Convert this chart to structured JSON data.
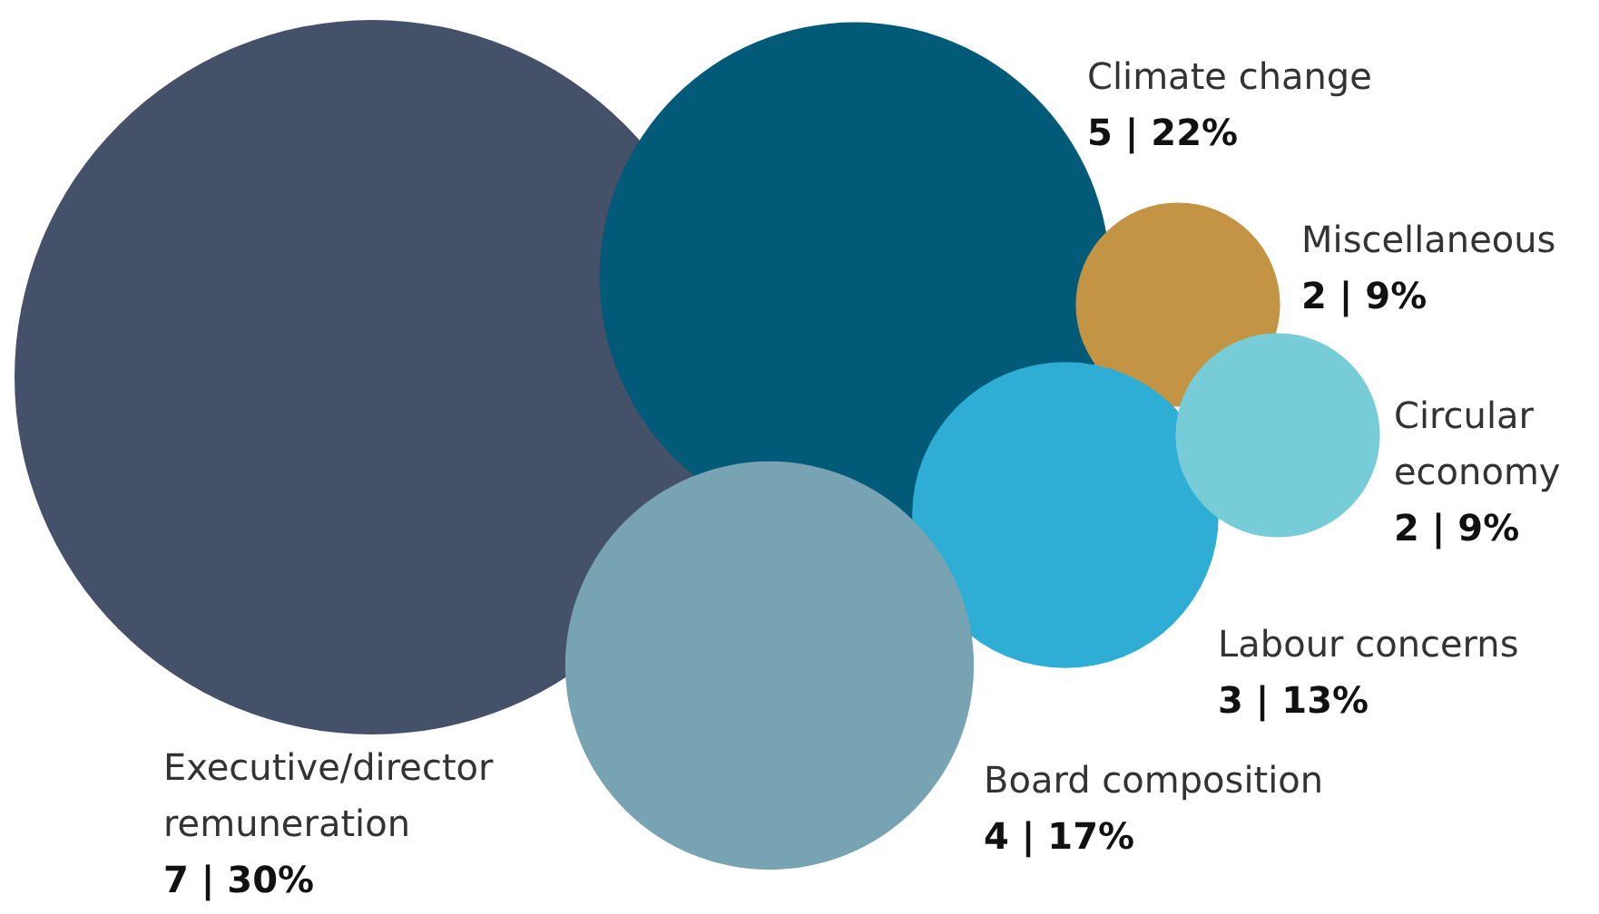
{
  "chart_data": {
    "type": "other",
    "categories": [
      "Executive/director remuneration",
      "Climate change",
      "Miscellaneous",
      "Labour concerns",
      "Circular economy",
      "Board composition"
    ],
    "values": [
      7,
      5,
      2,
      3,
      2,
      4
    ],
    "value_labels": [
      "7 | 30%",
      "5 | 22%",
      "2 | 9%",
      "3 | 13%",
      "2 | 9%",
      "4 | 17%"
    ],
    "colors": [
      "#455168",
      "#015a78",
      "#c29444",
      "#2eaed4",
      "#76cdd7",
      "#77a3b2"
    ]
  }
}
